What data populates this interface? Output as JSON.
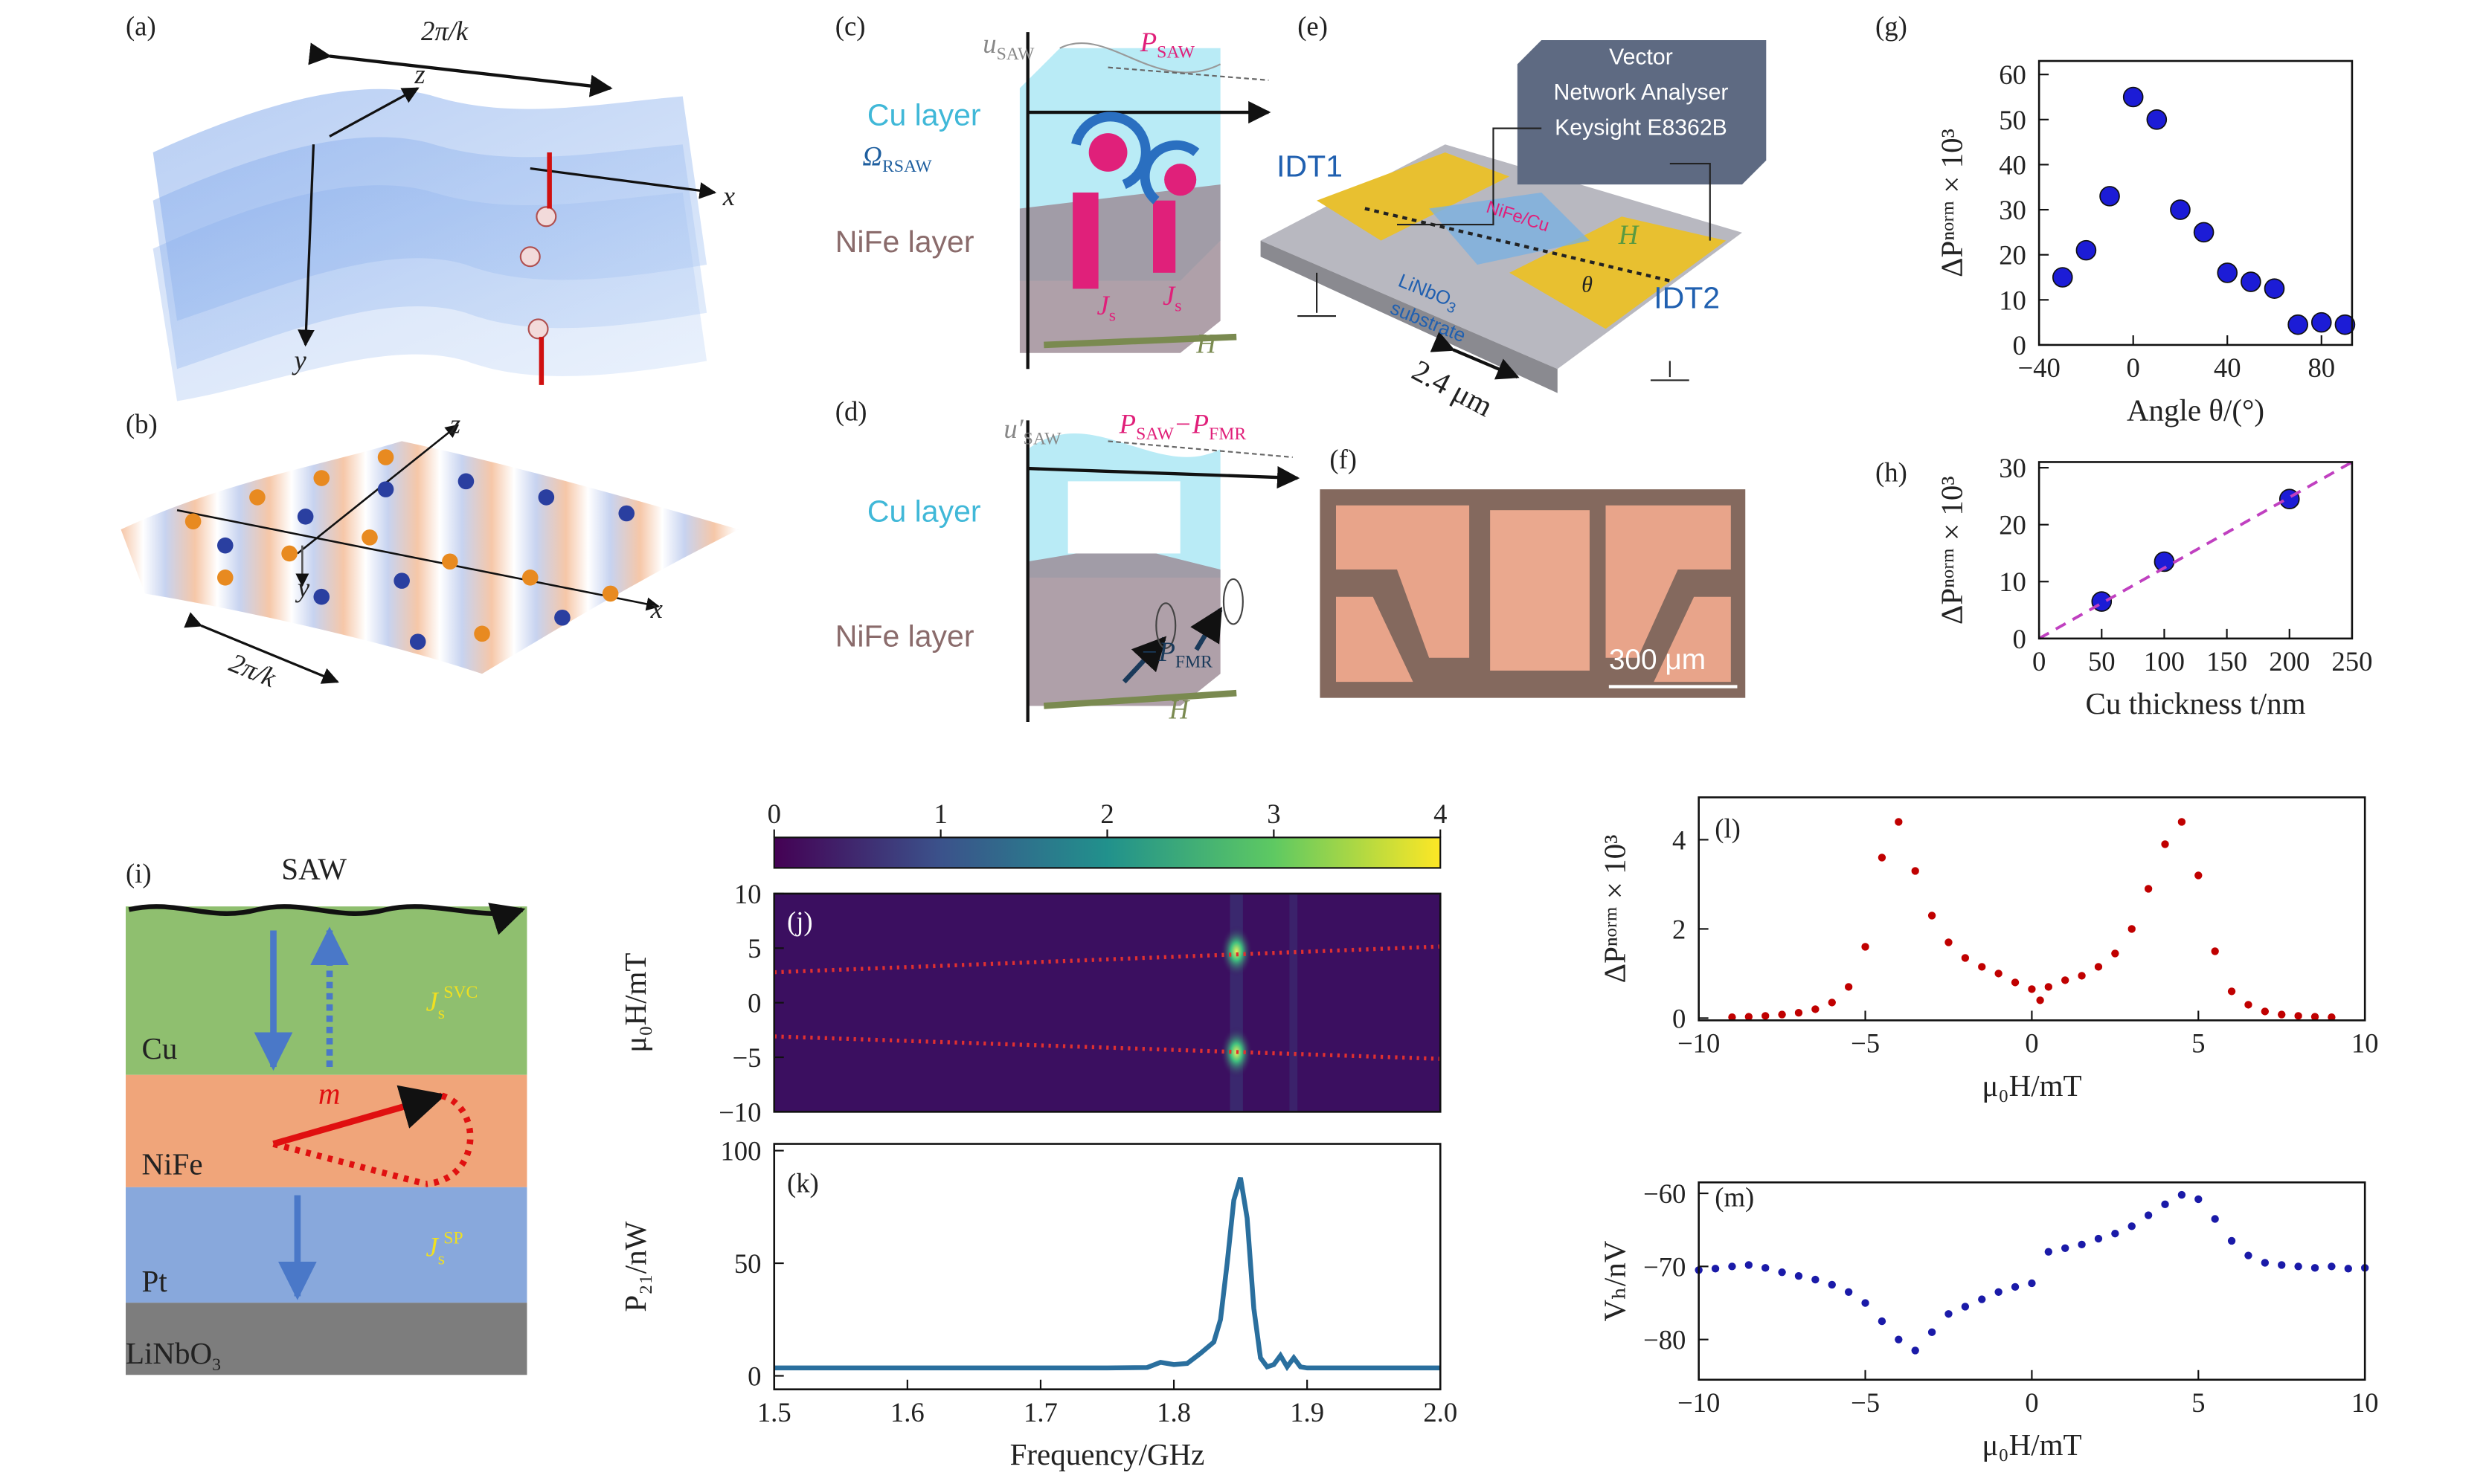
{
  "panels": {
    "a": {
      "tag": "(a)",
      "texts": [
        "2π/k",
        "z",
        "x",
        "y"
      ]
    },
    "b": {
      "tag": "(b)",
      "texts": [
        "z",
        "y",
        "x",
        "2π/k"
      ]
    },
    "c": {
      "tag": "(c)",
      "texts": [
        "u",
        "SAW",
        "P",
        "SAW",
        "Cu layer",
        "Ω",
        "RSAW",
        "NiFe layer",
        "J",
        "s",
        "J",
        "s",
        "H"
      ]
    },
    "d": {
      "tag": "(d)",
      "texts": [
        "u′",
        "SAW",
        "P",
        "SAW",
        "−P",
        "FMR",
        "Cu layer",
        "NiFe layer",
        "−P",
        "FMR",
        "H"
      ]
    },
    "e": {
      "tag": "(e)",
      "texts": [
        "Vector",
        "Network Analyser",
        "Keysight E8362B",
        "IDT1",
        "NiFe/Cu",
        "H",
        "θ",
        "LiNbO",
        "3",
        "substrate",
        "IDT2",
        "2.4 μm"
      ]
    },
    "f": {
      "tag": "(f)",
      "texts": [
        "300 μm"
      ]
    },
    "i": {
      "tag": "(i)",
      "texts": [
        "SAW",
        "Cu",
        "J",
        "s",
        "SVC",
        "m",
        "NiFe",
        "Pt",
        "J",
        "s",
        "SP",
        "LiNbO",
        "3"
      ]
    }
  },
  "chart_data": [
    {
      "type": "scatter",
      "label": "(g)",
      "xlabel": "Angle θ/(°)",
      "ylabel": "ΔPⁿᵒʳᵐ × 10³",
      "x": [
        -30,
        -20,
        -10,
        0,
        10,
        20,
        30,
        40,
        50,
        60,
        70,
        80,
        90
      ],
      "series": [
        {
          "color": "#1c1cd6",
          "values": [
            15,
            21,
            33,
            55,
            50,
            30,
            25,
            16,
            14,
            12.5,
            4.5,
            5,
            4.5
          ]
        }
      ],
      "xlim": [
        -40,
        93
      ],
      "ylim": [
        0,
        63
      ],
      "xticks": [
        {
          "value": -40,
          "label": "−40"
        },
        0,
        40,
        80
      ],
      "yticks": [
        0,
        10,
        20,
        30,
        40,
        50,
        60
      ]
    },
    {
      "type": "scatter",
      "label": "(h)",
      "xlabel": "Cu thickness t/nm",
      "ylabel": "ΔPⁿᵒʳᵐ × 10³",
      "x": [
        50,
        100,
        200
      ],
      "series": [
        {
          "color": "#1c1cd6",
          "values": [
            6.5,
            13.5,
            24.5
          ]
        },
        {
          "type": "line",
          "style": "dashed",
          "color": "#c040c0",
          "x": [
            0,
            250
          ],
          "values": [
            0,
            31
          ]
        }
      ],
      "xlim": [
        0,
        250
      ],
      "ylim": [
        0,
        31
      ],
      "xticks": [
        0,
        50,
        100,
        150,
        200,
        250
      ],
      "yticks": [
        0,
        10,
        20,
        30
      ]
    },
    {
      "type": "heatmap",
      "label": "(j)",
      "ylabel": "μ₀H/mT",
      "xlim": [
        1.5,
        2.0
      ],
      "ylim": [
        -10,
        10
      ],
      "yticks": [
        {
          "value": -10,
          "label": "−10"
        },
        {
          "value": -5,
          "label": "−5"
        },
        0,
        5,
        10
      ],
      "clim": [
        0,
        4
      ],
      "cticks": [
        0,
        1,
        2,
        3,
        4
      ]
    },
    {
      "type": "line",
      "label": "(k)",
      "xlabel": "Frequency/GHz",
      "ylabel": "P₂₁/nW",
      "x": [
        1.5,
        1.6,
        1.7,
        1.75,
        1.78,
        1.79,
        1.8,
        1.81,
        1.82,
        1.83,
        1.835,
        1.84,
        1.845,
        1.85,
        1.855,
        1.86,
        1.865,
        1.87,
        1.875,
        1.88,
        1.885,
        1.89,
        1.895,
        1.9,
        1.95,
        2.0
      ],
      "series": [
        {
          "color": "#2a6f9e",
          "values": [
            3.5,
            3.5,
            3.5,
            3.5,
            3.7,
            6,
            5,
            5.5,
            10,
            15,
            25,
            50,
            78,
            88,
            70,
            30,
            8,
            4,
            5,
            9,
            4,
            8,
            4,
            3.5,
            3.5,
            3.5
          ]
        }
      ],
      "xlim": [
        1.5,
        2.0
      ],
      "ylim": [
        -6,
        103
      ],
      "xticks": [
        1.5,
        1.6,
        1.7,
        1.8,
        1.9,
        {
          "value": 2,
          "label": "2.0"
        }
      ],
      "yticks": [
        0,
        50,
        100
      ]
    },
    {
      "type": "scatter",
      "label": "(l)",
      "xlabel": "μ₀H/mT",
      "ylabel": "ΔPⁿᵒʳᵐ × 10³",
      "x": [
        -9,
        -8.5,
        -8,
        -7.5,
        -7,
        -6.5,
        -6,
        -5.5,
        -5,
        -4.5,
        -4,
        -3.5,
        -3,
        -2.5,
        -2,
        -1.5,
        -1,
        -0.5,
        0,
        0.25,
        0.5,
        1,
        1.5,
        2,
        2.5,
        3,
        3.5,
        4,
        4.5,
        5,
        5.5,
        6,
        6.5,
        7,
        7.5,
        8,
        8.5,
        9
      ],
      "series": [
        {
          "color": "#c00000",
          "values": [
            0.02,
            0.03,
            0.05,
            0.08,
            0.12,
            0.2,
            0.35,
            0.7,
            1.6,
            3.6,
            4.4,
            3.3,
            2.3,
            1.7,
            1.35,
            1.15,
            1.0,
            0.8,
            0.65,
            0.4,
            0.7,
            0.85,
            0.95,
            1.15,
            1.45,
            2.0,
            2.9,
            3.9,
            4.4,
            3.2,
            1.5,
            0.6,
            0.3,
            0.15,
            0.08,
            0.05,
            0.03,
            0.02
          ]
        }
      ],
      "xlim": [
        -10,
        10
      ],
      "ylim": [
        -0.05,
        4.95
      ],
      "xticks": [
        {
          "value": -10,
          "label": "−10"
        },
        {
          "value": -5,
          "label": "−5"
        },
        0,
        5,
        10
      ],
      "yticks": [
        0,
        2,
        4
      ]
    },
    {
      "type": "scatter",
      "label": "(m)",
      "xlabel": "μ₀H/mT",
      "ylabel": "Vₕ/nV",
      "x": [
        -10,
        -9.5,
        -9,
        -8.5,
        -8,
        -7.5,
        -7,
        -6.5,
        -6,
        -5.5,
        -5,
        -4.5,
        -4,
        -3.5,
        -3,
        -2.5,
        -2,
        -1.5,
        -1,
        -0.5,
        0,
        0.5,
        1,
        1.5,
        2,
        2.5,
        3,
        3.5,
        4,
        4.5,
        5,
        5.5,
        6,
        6.5,
        7,
        7.5,
        8,
        8.5,
        9,
        9.5,
        10
      ],
      "series": [
        {
          "color": "#1a1aa8",
          "values": [
            -70.5,
            -70.3,
            -70,
            -69.8,
            -70.2,
            -70.8,
            -71.3,
            -71.8,
            -72.5,
            -73.5,
            -75,
            -77.5,
            -80,
            -81.5,
            -79,
            -76.5,
            -75.5,
            -74.5,
            -73.5,
            -72.8,
            -72.3,
            -68,
            -67.5,
            -67,
            -66.2,
            -65.5,
            -64.5,
            -63,
            -61.5,
            -60.2,
            -60.8,
            -63.5,
            -66.5,
            -68.5,
            -69.5,
            -69.8,
            -70,
            -70.2,
            -70,
            -70.3,
            -70.2
          ]
        }
      ],
      "xlim": [
        -10,
        10
      ],
      "ylim": [
        -85.5,
        -58.5
      ],
      "xticks": [
        {
          "value": -10,
          "label": "−10"
        },
        {
          "value": -5,
          "label": "−5"
        },
        0,
        5,
        10
      ],
      "yticks": [
        {
          "value": -80,
          "label": "−80"
        },
        {
          "value": -70,
          "label": "−70"
        },
        {
          "value": -60,
          "label": "−60"
        }
      ]
    }
  ]
}
